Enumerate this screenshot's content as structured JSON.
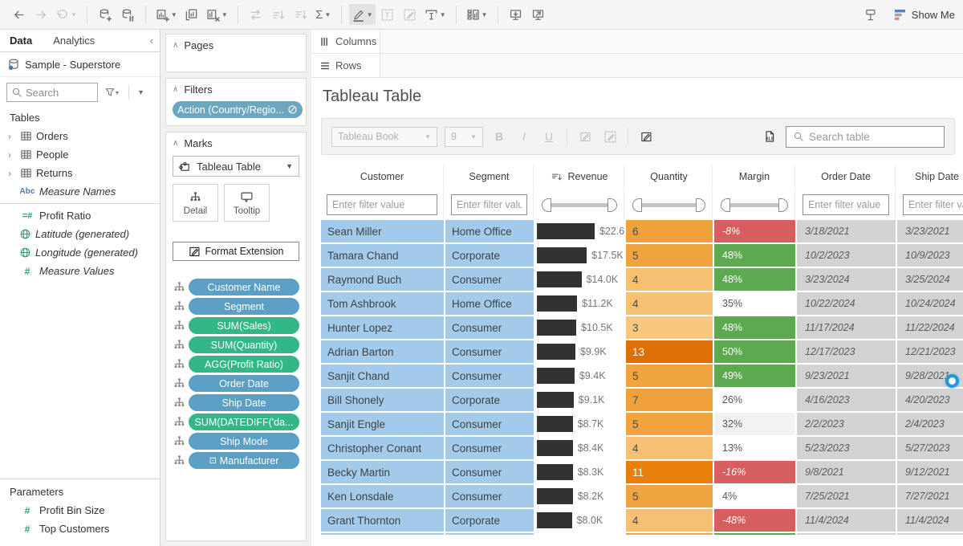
{
  "toolbar": {
    "show_me_label": "Show Me",
    "icons": [
      {
        "name": "undo",
        "icon": "arrow-left",
        "enabled": true
      },
      {
        "name": "redo",
        "icon": "arrow-right",
        "enabled": false
      },
      {
        "name": "replay",
        "icon": "revert",
        "caret": true,
        "enabled": false
      },
      {
        "divider": true
      },
      {
        "name": "new-data-source",
        "icon": "datasource-add",
        "enabled": true
      },
      {
        "name": "pause-auto-updates",
        "icon": "datasource-pause",
        "enabled": true
      },
      {
        "divider": true
      },
      {
        "name": "new-worksheet",
        "icon": "worksheet-new",
        "caret": true,
        "enabled": true
      },
      {
        "name": "duplicate-sheet",
        "icon": "worksheet-duplicate",
        "enabled": true
      },
      {
        "name": "clear-sheet",
        "icon": "worksheet-clear",
        "caret": true,
        "enabled": true
      },
      {
        "divider": true
      },
      {
        "name": "swap-rows-columns",
        "icon": "swap",
        "enabled": false
      },
      {
        "name": "sort-ascending",
        "icon": "sort-asc",
        "enabled": false
      },
      {
        "name": "sort-descending",
        "icon": "sort-desc",
        "enabled": false
      },
      {
        "name": "totals",
        "icon": "sigma",
        "caret": true,
        "enabled": true
      },
      {
        "divider": true
      },
      {
        "name": "highlight",
        "icon": "highlighter",
        "caret": true,
        "enabled": true,
        "active": true
      },
      {
        "name": "text-label",
        "icon": "text-box",
        "enabled": false
      },
      {
        "name": "annotate",
        "icon": "annotate",
        "enabled": false
      },
      {
        "name": "fit",
        "icon": "fit",
        "caret": true,
        "enabled": true
      },
      {
        "divider": true
      },
      {
        "name": "show-hide-cards",
        "icon": "cards",
        "caret": true,
        "enabled": true
      },
      {
        "divider": true
      },
      {
        "name": "download",
        "icon": "download",
        "enabled": true
      },
      {
        "name": "presentation-mode",
        "icon": "present",
        "enabled": true
      }
    ]
  },
  "sidebar": {
    "tabs": [
      {
        "label": "Data",
        "active": true
      },
      {
        "label": "Analytics",
        "active": false
      }
    ],
    "collapse_glyph": "‹",
    "datasource": "Sample - Superstore",
    "search_placeholder": "Search",
    "tables_header": "Tables",
    "fields": [
      {
        "icon": "table-grid",
        "label": "Orders",
        "expand": true
      },
      {
        "icon": "table-grid",
        "label": "People",
        "expand": true
      },
      {
        "icon": "table-grid",
        "label": "Returns",
        "expand": true
      },
      {
        "icon": "abc",
        "label": "Measure Names",
        "italic": true
      },
      {
        "separator": true
      },
      {
        "icon": "calc-number",
        "label": "Profit Ratio"
      },
      {
        "icon": "globe",
        "label": "Latitude (generated)",
        "italic": true
      },
      {
        "icon": "globe",
        "label": "Longitude (generated)",
        "italic": true
      },
      {
        "icon": "number",
        "label": "Measure Values",
        "italic": true
      }
    ],
    "parameters_header": "Parameters",
    "parameters": [
      {
        "icon": "number",
        "label": "Profit Bin Size"
      },
      {
        "icon": "number",
        "label": "Top Customers"
      }
    ]
  },
  "panel": {
    "pages_label": "Pages",
    "filters_label": "Filters",
    "filter_pill": "Action (Country/Regio...",
    "marks_label": "Marks",
    "mark_type": "Tableau Table",
    "detail_label": "Detail",
    "tooltip_label": "Tooltip",
    "format_extension_label": "Format Extension",
    "pills": [
      {
        "label": "Customer Name",
        "type": "dim"
      },
      {
        "label": "Segment",
        "type": "dim"
      },
      {
        "label": "SUM(Sales)",
        "type": "measure"
      },
      {
        "label": "SUM(Quantity)",
        "type": "measure"
      },
      {
        "label": "AGG(Profit Ratio)",
        "type": "measure"
      },
      {
        "label": "Order Date",
        "type": "dim"
      },
      {
        "label": "Ship Date",
        "type": "dim"
      },
      {
        "label": "SUM(DATEDIFF('da...",
        "type": "measure"
      },
      {
        "label": "Ship Mode",
        "type": "dim"
      },
      {
        "label": "Manufacturer",
        "type": "dim",
        "boxed": true
      }
    ]
  },
  "shelves": {
    "columns_label": "Columns",
    "rows_label": "Rows"
  },
  "sheet": {
    "title": "Tableau Table",
    "font_name": "Tableau Book",
    "font_size": "9",
    "search_placeholder": "Search table"
  },
  "table": {
    "filter_placeholder": "Enter filter value",
    "columns": [
      {
        "key": "customer",
        "label": "Customer",
        "filter": "text"
      },
      {
        "key": "segment",
        "label": "Segment",
        "filter": "text"
      },
      {
        "key": "revenue",
        "label": "Revenue",
        "filter": "slider",
        "sorted": true
      },
      {
        "key": "quantity",
        "label": "Quantity",
        "filter": "slider"
      },
      {
        "key": "margin",
        "label": "Margin",
        "filter": "slider"
      },
      {
        "key": "order_date",
        "label": "Order Date",
        "filter": "text"
      },
      {
        "key": "ship_date",
        "label": "Ship Date",
        "filter": "text"
      }
    ],
    "rows": [
      {
        "customer": "Sean Miller",
        "segment": "Home Office",
        "revenue_label": "$22.6K",
        "revenue_k": 22.6,
        "quantity": "6",
        "q_bg": "#EFA23C",
        "q_white": false,
        "margin": "-8%",
        "m_state": "red",
        "order_date": "3/18/2021",
        "ship_date": "3/23/2021"
      },
      {
        "customer": "Tamara Chand",
        "segment": "Corporate",
        "revenue_label": "$17.5K",
        "revenue_k": 17.5,
        "quantity": "5",
        "q_bg": "#F0A440",
        "q_white": false,
        "margin": "48%",
        "m_state": "green",
        "order_date": "10/2/2023",
        "ship_date": "10/9/2023"
      },
      {
        "customer": "Raymond Buch",
        "segment": "Consumer",
        "revenue_label": "$14.0K",
        "revenue_k": 14.0,
        "quantity": "4",
        "q_bg": "#F6BF72",
        "q_white": false,
        "margin": "48%",
        "m_state": "green",
        "order_date": "3/23/2024",
        "ship_date": "3/25/2024"
      },
      {
        "customer": "Tom Ashbrook",
        "segment": "Home Office",
        "revenue_label": "$11.2K",
        "revenue_k": 11.2,
        "quantity": "4",
        "q_bg": "#F6BF72",
        "q_white": false,
        "margin": "35%",
        "m_state": "none",
        "order_date": "10/22/2024",
        "ship_date": "10/24/2024"
      },
      {
        "customer": "Hunter Lopez",
        "segment": "Consumer",
        "revenue_label": "$10.5K",
        "revenue_k": 10.5,
        "quantity": "3",
        "q_bg": "#F8C77F",
        "q_white": false,
        "margin": "48%",
        "m_state": "green",
        "order_date": "11/17/2024",
        "ship_date": "11/22/2024"
      },
      {
        "customer": "Adrian Barton",
        "segment": "Consumer",
        "revenue_label": "$9.9K",
        "revenue_k": 9.9,
        "quantity": "13",
        "q_bg": "#DE6F07",
        "q_white": true,
        "margin": "50%",
        "m_state": "green",
        "order_date": "12/17/2023",
        "ship_date": "12/21/2023"
      },
      {
        "customer": "Sanjit Chand",
        "segment": "Consumer",
        "revenue_label": "$9.4K",
        "revenue_k": 9.4,
        "quantity": "5",
        "q_bg": "#F0A440",
        "q_white": false,
        "margin": "49%",
        "m_state": "green",
        "order_date": "9/23/2021",
        "ship_date": "9/28/2021"
      },
      {
        "customer": "Bill Shonely",
        "segment": "Corporate",
        "revenue_label": "$9.1K",
        "revenue_k": 9.1,
        "quantity": "7",
        "q_bg": "#EFA23C",
        "q_white": false,
        "margin": "26%",
        "m_state": "none",
        "order_date": "4/16/2023",
        "ship_date": "4/20/2023"
      },
      {
        "customer": "Sanjit Engle",
        "segment": "Consumer",
        "revenue_label": "$8.7K",
        "revenue_k": 8.7,
        "quantity": "5",
        "q_bg": "#F0A440",
        "q_white": false,
        "margin": "32%",
        "m_state": "band",
        "order_date": "2/2/2023",
        "ship_date": "2/4/2023"
      },
      {
        "customer": "Christopher Conant",
        "segment": "Consumer",
        "revenue_label": "$8.4K",
        "revenue_k": 8.4,
        "quantity": "4",
        "q_bg": "#F6BF72",
        "q_white": false,
        "margin": "13%",
        "m_state": "none",
        "order_date": "5/23/2023",
        "ship_date": "5/27/2023"
      },
      {
        "customer": "Becky Martin",
        "segment": "Consumer",
        "revenue_label": "$8.3K",
        "revenue_k": 8.3,
        "quantity": "11",
        "q_bg": "#E87F0B",
        "q_white": true,
        "margin": "-16%",
        "m_state": "red",
        "order_date": "9/8/2021",
        "ship_date": "9/12/2021"
      },
      {
        "customer": "Ken Lonsdale",
        "segment": "Consumer",
        "revenue_label": "$8.2K",
        "revenue_k": 8.2,
        "quantity": "5",
        "q_bg": "#F0A440",
        "q_white": false,
        "margin": "4%",
        "m_state": "none",
        "order_date": "7/25/2021",
        "ship_date": "7/27/2021"
      },
      {
        "customer": "Grant Thornton",
        "segment": "Corporate",
        "revenue_label": "$8.0K",
        "revenue_k": 8.0,
        "quantity": "4",
        "q_bg": "#F6BF72",
        "q_white": false,
        "margin": "-48%",
        "m_state": "red",
        "order_date": "11/4/2024",
        "ship_date": "11/4/2024"
      },
      {
        "customer": "",
        "segment": "",
        "revenue_label": "",
        "revenue_k": 9.0,
        "quantity": "",
        "q_bg": "#F0A440",
        "q_white": false,
        "margin": "",
        "m_state": "green",
        "order_date": "",
        "ship_date": "",
        "partial": true
      }
    ]
  },
  "colors": {
    "pill_dim": "#5BA0C4",
    "pill_measure": "#34B786",
    "pill_filter": "#6BA7C0",
    "cell_blue": "#A3CBE9",
    "margin_green": "#5CA94F",
    "margin_red": "#D65E5E",
    "date_gray": "#D2D2D2",
    "bar_dark": "#323232",
    "scroll_dot_blue": "#1F97DD"
  }
}
